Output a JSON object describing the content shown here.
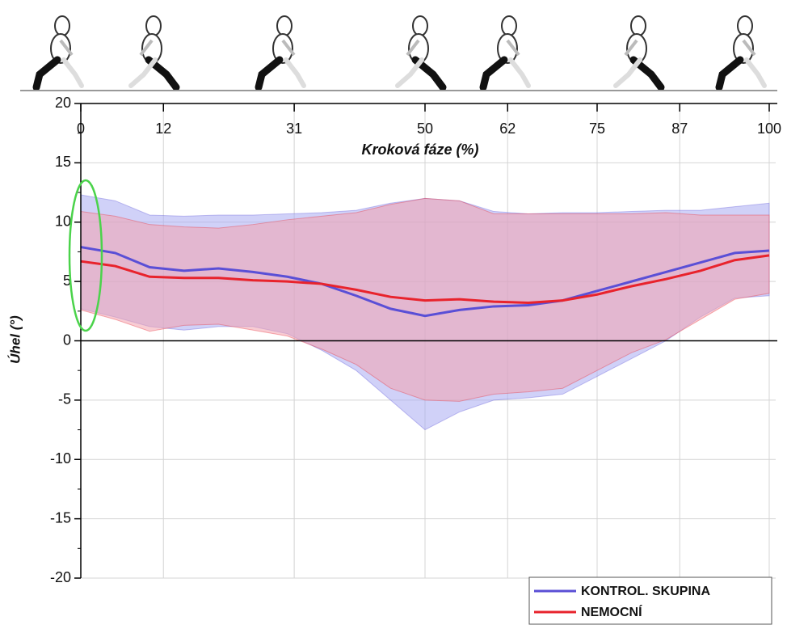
{
  "chart_data": {
    "type": "line",
    "x_label": "Kroková fáze (%)",
    "y_label": "Úhel (°)",
    "x": [
      0,
      5,
      10,
      15,
      20,
      25,
      30,
      35,
      40,
      45,
      50,
      55,
      60,
      65,
      70,
      75,
      80,
      85,
      90,
      95,
      100
    ],
    "xlim": [
      0,
      100
    ],
    "xticks": [
      0,
      12,
      31,
      50,
      62,
      75,
      87,
      100
    ],
    "ylim": [
      -20,
      20
    ],
    "yticks": [
      -20,
      -15,
      -10,
      -5,
      0,
      5,
      10,
      15,
      20
    ],
    "grid": true,
    "legend": "lower right",
    "series": [
      {
        "name": "KONTROL. SKUPINA",
        "color": "#5a4fd6",
        "band_color": "#a9acf2",
        "values": [
          7.9,
          7.4,
          6.2,
          5.9,
          6.1,
          5.8,
          5.4,
          4.8,
          3.8,
          2.7,
          2.1,
          2.6,
          2.9,
          3.0,
          3.4,
          4.2,
          5.0,
          5.8,
          6.6,
          7.4,
          7.6
        ],
        "upper": [
          12.3,
          11.8,
          10.6,
          10.5,
          10.6,
          10.6,
          10.7,
          10.8,
          11.0,
          11.6,
          12.0,
          11.8,
          10.9,
          10.7,
          10.8,
          10.8,
          10.9,
          11.0,
          11.0,
          11.3,
          11.6
        ],
        "lower": [
          2.7,
          2.0,
          1.2,
          0.9,
          1.2,
          1.2,
          0.6,
          -0.8,
          -2.5,
          -5.0,
          -7.5,
          -6.0,
          -5.0,
          -4.8,
          -4.5,
          -3.0,
          -1.5,
          0.0,
          2.0,
          3.6,
          3.8
        ]
      },
      {
        "name": "NEMOCNÍ",
        "color": "#e8232c",
        "band_color": "#f2a3ae",
        "values": [
          6.7,
          6.3,
          5.4,
          5.3,
          5.3,
          5.1,
          5.0,
          4.8,
          4.3,
          3.7,
          3.4,
          3.5,
          3.3,
          3.2,
          3.4,
          3.9,
          4.6,
          5.2,
          5.9,
          6.8,
          7.2
        ],
        "upper": [
          10.9,
          10.5,
          9.8,
          9.6,
          9.5,
          9.8,
          10.2,
          10.5,
          10.8,
          11.5,
          12.0,
          11.8,
          10.7,
          10.7,
          10.7,
          10.7,
          10.7,
          10.8,
          10.6,
          10.6,
          10.6
        ],
        "lower": [
          2.6,
          1.8,
          0.8,
          1.3,
          1.4,
          0.9,
          0.4,
          -0.7,
          -2.0,
          -4.0,
          -5.0,
          -5.1,
          -4.5,
          -4.3,
          -4.0,
          -2.5,
          -1.0,
          0.1,
          1.8,
          3.5,
          4.0
        ]
      }
    ]
  }
}
